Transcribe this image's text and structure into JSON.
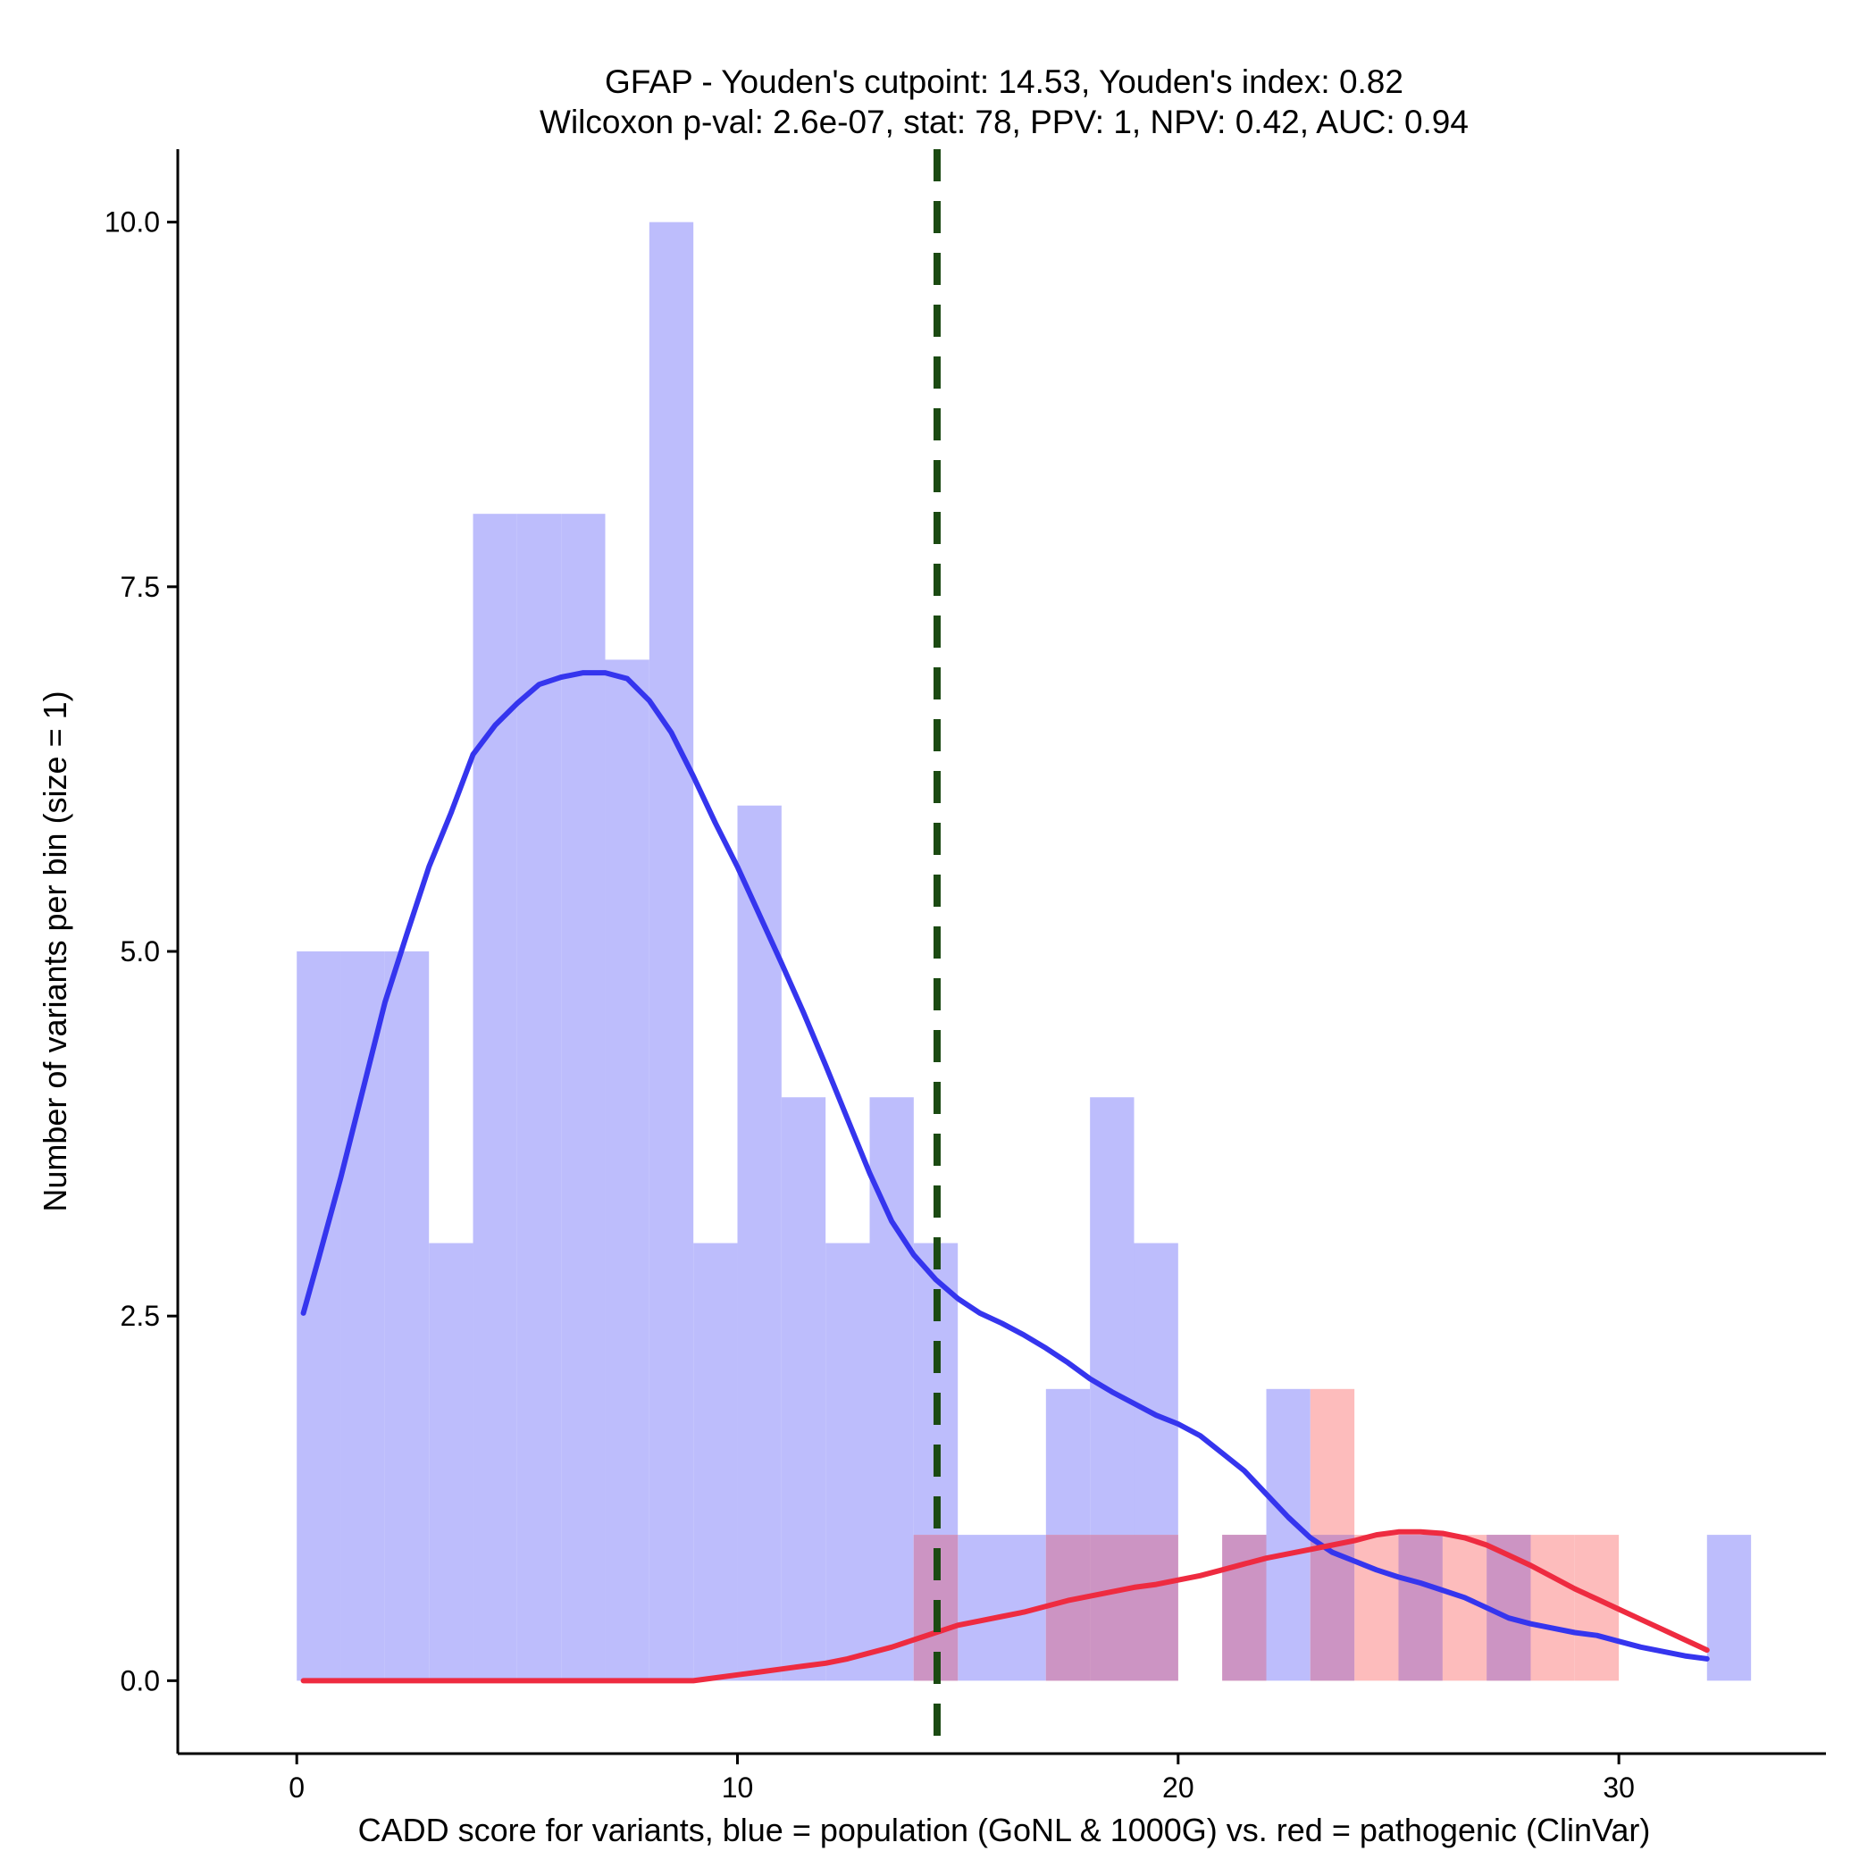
{
  "chart_data": {
    "type": "histogram",
    "title_line1": "GFAP - Youden's cutpoint: 14.53, Youden's index: 0.82",
    "title_line2": "Wilcoxon p-val: 2.6e-07, stat: 78, PPV: 1, NPV: 0.42, AUC: 0.94",
    "xlabel": "CADD score for variants, blue = population (GoNL & 1000G) vs. red = pathogenic (ClinVar)",
    "ylabel": "Number of variants per bin (size = 1)",
    "xlim": [
      -2.7,
      34.7
    ],
    "ylim": [
      -0.5,
      10.5
    ],
    "x_ticks": [
      0,
      10,
      20,
      30
    ],
    "x_tick_labels": [
      "0",
      "10",
      "20",
      "30"
    ],
    "y_ticks": [
      0,
      2.5,
      5,
      7.5,
      10
    ],
    "y_tick_labels": [
      "0.0",
      "2.5",
      "5.0",
      "7.5",
      "10.0"
    ],
    "bin_width": 1,
    "cutpoint": 14.53,
    "colors": {
      "population_bar": "#bdbdfc",
      "pathogenic_bar": "#fdbcbc",
      "overlap_bar": "#cc94c3",
      "population_curve": "#3535ee",
      "pathogenic_curve": "#ee2b40",
      "cutpoint_line": "#1b4a12"
    },
    "series": [
      {
        "name": "population",
        "bins": [
          {
            "x0": 0,
            "count": 5
          },
          {
            "x0": 1,
            "count": 5
          },
          {
            "x0": 2,
            "count": 5
          },
          {
            "x0": 3,
            "count": 3
          },
          {
            "x0": 4,
            "count": 8
          },
          {
            "x0": 5,
            "count": 8
          },
          {
            "x0": 6,
            "count": 8
          },
          {
            "x0": 7,
            "count": 7
          },
          {
            "x0": 8,
            "count": 10
          },
          {
            "x0": 9,
            "count": 3
          },
          {
            "x0": 10,
            "count": 6
          },
          {
            "x0": 11,
            "count": 4
          },
          {
            "x0": 12,
            "count": 3
          },
          {
            "x0": 13,
            "count": 4
          },
          {
            "x0": 14,
            "count": 3
          },
          {
            "x0": 15,
            "count": 1
          },
          {
            "x0": 16,
            "count": 1
          },
          {
            "x0": 17,
            "count": 2
          },
          {
            "x0": 18,
            "count": 4
          },
          {
            "x0": 19,
            "count": 3
          },
          {
            "x0": 22,
            "count": 2
          },
          {
            "x0": 32,
            "count": 1
          }
        ]
      },
      {
        "name": "pathogenic",
        "bins": [
          {
            "x0": 14,
            "count": 1
          },
          {
            "x0": 17,
            "count": 1
          },
          {
            "x0": 18,
            "count": 1
          },
          {
            "x0": 19,
            "count": 1
          },
          {
            "x0": 21,
            "count": 1
          },
          {
            "x0": 23,
            "count": 2
          },
          {
            "x0": 24,
            "count": 1
          },
          {
            "x0": 25,
            "count": 1
          },
          {
            "x0": 26,
            "count": 1
          },
          {
            "x0": 27,
            "count": 1
          },
          {
            "x0": 28,
            "count": 1
          },
          {
            "x0": 29,
            "count": 1
          }
        ]
      }
    ],
    "overlap_bins": [
      {
        "x0": 14,
        "count": 1
      },
      {
        "x0": 17,
        "count": 1
      },
      {
        "x0": 18,
        "count": 1
      },
      {
        "x0": 19,
        "count": 1
      },
      {
        "x0": 21,
        "count": 1
      },
      {
        "x0": 23,
        "count": 1
      },
      {
        "x0": 25,
        "count": 1
      },
      {
        "x0": 27,
        "count": 1
      }
    ],
    "density_curves": [
      {
        "name": "population",
        "points": [
          [
            0.15,
            2.52
          ],
          [
            0.5,
            2.9
          ],
          [
            1.0,
            3.45
          ],
          [
            1.5,
            4.05
          ],
          [
            2.0,
            4.65
          ],
          [
            2.5,
            5.12
          ],
          [
            3.0,
            5.58
          ],
          [
            3.5,
            5.95
          ],
          [
            4.0,
            6.35
          ],
          [
            4.5,
            6.55
          ],
          [
            5.0,
            6.7
          ],
          [
            5.5,
            6.83
          ],
          [
            6.0,
            6.88
          ],
          [
            6.5,
            6.91
          ],
          [
            7.0,
            6.91
          ],
          [
            7.5,
            6.87
          ],
          [
            8.0,
            6.72
          ],
          [
            8.5,
            6.5
          ],
          [
            9.0,
            6.2
          ],
          [
            9.5,
            5.88
          ],
          [
            10.0,
            5.58
          ],
          [
            10.5,
            5.25
          ],
          [
            11.0,
            4.92
          ],
          [
            11.5,
            4.58
          ],
          [
            12.0,
            4.22
          ],
          [
            12.5,
            3.85
          ],
          [
            13.0,
            3.48
          ],
          [
            13.5,
            3.15
          ],
          [
            14.0,
            2.92
          ],
          [
            14.5,
            2.75
          ],
          [
            15.0,
            2.62
          ],
          [
            15.5,
            2.52
          ],
          [
            16.0,
            2.45
          ],
          [
            16.5,
            2.37
          ],
          [
            17.0,
            2.28
          ],
          [
            17.5,
            2.18
          ],
          [
            18.0,
            2.07
          ],
          [
            18.5,
            1.98
          ],
          [
            19.0,
            1.9
          ],
          [
            19.5,
            1.82
          ],
          [
            20.0,
            1.76
          ],
          [
            20.5,
            1.68
          ],
          [
            21.0,
            1.56
          ],
          [
            21.5,
            1.44
          ],
          [
            22.0,
            1.28
          ],
          [
            22.5,
            1.12
          ],
          [
            23.0,
            0.98
          ],
          [
            23.5,
            0.88
          ],
          [
            24.0,
            0.82
          ],
          [
            24.5,
            0.76
          ],
          [
            25.0,
            0.71
          ],
          [
            25.5,
            0.67
          ],
          [
            26.0,
            0.62
          ],
          [
            26.5,
            0.57
          ],
          [
            27.0,
            0.5
          ],
          [
            27.5,
            0.43
          ],
          [
            28.0,
            0.39
          ],
          [
            28.5,
            0.36
          ],
          [
            29.0,
            0.33
          ],
          [
            29.5,
            0.31
          ],
          [
            30.0,
            0.27
          ],
          [
            30.5,
            0.23
          ],
          [
            31.0,
            0.2
          ],
          [
            31.5,
            0.17
          ],
          [
            32.0,
            0.15
          ]
        ]
      },
      {
        "name": "pathogenic",
        "points": [
          [
            0.15,
            0.0
          ],
          [
            3.0,
            0.0
          ],
          [
            6.0,
            0.0
          ],
          [
            9.0,
            0.0
          ],
          [
            9.5,
            0.02
          ],
          [
            10.0,
            0.04
          ],
          [
            10.5,
            0.06
          ],
          [
            11.0,
            0.08
          ],
          [
            11.5,
            0.1
          ],
          [
            12.0,
            0.12
          ],
          [
            12.5,
            0.15
          ],
          [
            13.0,
            0.19
          ],
          [
            13.5,
            0.23
          ],
          [
            14.0,
            0.28
          ],
          [
            14.5,
            0.33
          ],
          [
            15.0,
            0.38
          ],
          [
            15.5,
            0.41
          ],
          [
            16.0,
            0.44
          ],
          [
            16.5,
            0.47
          ],
          [
            17.0,
            0.51
          ],
          [
            17.5,
            0.55
          ],
          [
            18.0,
            0.58
          ],
          [
            18.5,
            0.61
          ],
          [
            19.0,
            0.64
          ],
          [
            19.5,
            0.66
          ],
          [
            20.0,
            0.69
          ],
          [
            20.5,
            0.72
          ],
          [
            21.0,
            0.76
          ],
          [
            21.5,
            0.8
          ],
          [
            22.0,
            0.84
          ],
          [
            22.5,
            0.87
          ],
          [
            23.0,
            0.9
          ],
          [
            23.5,
            0.93
          ],
          [
            24.0,
            0.96
          ],
          [
            24.5,
            1.0
          ],
          [
            25.0,
            1.02
          ],
          [
            25.5,
            1.02
          ],
          [
            26.0,
            1.01
          ],
          [
            26.5,
            0.98
          ],
          [
            27.0,
            0.93
          ],
          [
            27.5,
            0.86
          ],
          [
            28.0,
            0.79
          ],
          [
            28.5,
            0.71
          ],
          [
            29.0,
            0.63
          ],
          [
            29.5,
            0.56
          ],
          [
            30.0,
            0.49
          ],
          [
            30.5,
            0.42
          ],
          [
            31.0,
            0.35
          ],
          [
            31.5,
            0.28
          ],
          [
            32.0,
            0.21
          ]
        ]
      }
    ]
  }
}
